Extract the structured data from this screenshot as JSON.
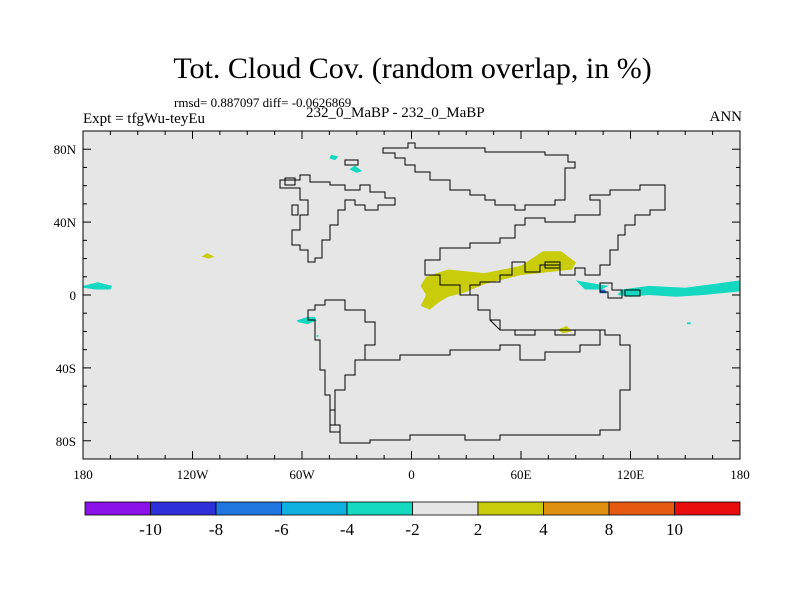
{
  "title": "Tot. Cloud Cov. (random overlap, in %)",
  "stats": "rmsd= 0.887097 diff= -0.0626869",
  "left_label": "Expt = tfgWu-teyEu",
  "center_label": "232_0_MaBP - 232_0_MaBP",
  "right_label": "ANN",
  "chart_data": {
    "type": "heatmap",
    "title": "Tot. Cloud Cov. (random overlap, in %)",
    "xlim": [
      -180,
      180
    ],
    "ylim": [
      -90,
      90
    ],
    "x_ticks": [
      {
        "value": -180,
        "label": "180"
      },
      {
        "value": -120,
        "label": "120W"
      },
      {
        "value": -60,
        "label": "60W"
      },
      {
        "value": 0,
        "label": "0"
      },
      {
        "value": 60,
        "label": "60E"
      },
      {
        "value": 120,
        "label": "120E"
      },
      {
        "value": 180,
        "label": "180"
      }
    ],
    "y_ticks": [
      {
        "value": 80,
        "label": "80N"
      },
      {
        "value": 40,
        "label": "40N"
      },
      {
        "value": 0,
        "label": "0"
      },
      {
        "value": -40,
        "label": "40S"
      },
      {
        "value": -80,
        "label": "80S"
      }
    ],
    "background_color": "#e6e6e6",
    "colorbar": {
      "colors": [
        "#8a12e8",
        "#2f2fd9",
        "#1f76e0",
        "#10b0de",
        "#14d8c0",
        "#e6e6e6",
        "#c8cc0a",
        "#e09010",
        "#e55a10",
        "#e80c0c"
      ],
      "labels": [
        "-10",
        "-8",
        "-6",
        "-4",
        "-2",
        "2",
        "4",
        "8",
        "10"
      ]
    },
    "anomaly_regions": [
      {
        "name": "teal-north-1",
        "color": "#14d8c0",
        "points": [
          [
            -45,
            75
          ],
          [
            -42,
            74
          ],
          [
            -40,
            76
          ],
          [
            -44,
            77
          ]
        ]
      },
      {
        "name": "teal-north-2",
        "color": "#14d8c0",
        "points": [
          [
            -34,
            69
          ],
          [
            -30,
            67
          ],
          [
            -27,
            68
          ],
          [
            -31,
            71
          ]
        ]
      },
      {
        "name": "yellow-pacific",
        "color": "#c8cc0a",
        "points": [
          [
            -115,
            21
          ],
          [
            -111,
            20
          ],
          [
            -108,
            21
          ],
          [
            -112,
            23
          ]
        ]
      },
      {
        "name": "teal-dateline",
        "color": "#14d8c0",
        "points": [
          [
            -180,
            5
          ],
          [
            -172,
            7
          ],
          [
            -164,
            5
          ],
          [
            -165,
            3
          ],
          [
            -173,
            3
          ],
          [
            -180,
            4
          ]
        ]
      },
      {
        "name": "teal-south-america",
        "color": "#14d8c0",
        "points": [
          [
            -63,
            -14
          ],
          [
            -57,
            -12
          ],
          [
            -53,
            -12
          ],
          [
            -52,
            -14
          ],
          [
            -57,
            -16
          ],
          [
            -62,
            -15
          ]
        ]
      },
      {
        "name": "teal-small-1",
        "color": "#14d8c0",
        "points": [
          [
            -52,
            -22
          ],
          [
            -51,
            -22
          ],
          [
            -51,
            -23
          ],
          [
            -52,
            -23
          ]
        ]
      },
      {
        "name": "yellow-africa-band",
        "color": "#c8cc0a",
        "points": [
          [
            8,
            10
          ],
          [
            20,
            14
          ],
          [
            40,
            12
          ],
          [
            60,
            16
          ],
          [
            72,
            24
          ],
          [
            82,
            24
          ],
          [
            90,
            18
          ],
          [
            88,
            14
          ],
          [
            70,
            12
          ],
          [
            60,
            11
          ],
          [
            40,
            6
          ],
          [
            28,
            1
          ],
          [
            20,
            -1
          ],
          [
            15,
            -4
          ],
          [
            10,
            -8
          ],
          [
            5,
            -6
          ],
          [
            8,
            0
          ],
          [
            5,
            5
          ]
        ]
      },
      {
        "name": "yellow-small-south",
        "color": "#c8cc0a",
        "points": [
          [
            80,
            -19
          ],
          [
            85,
            -17
          ],
          [
            88,
            -20
          ],
          [
            83,
            -21
          ]
        ]
      },
      {
        "name": "teal-indonesia",
        "color": "#14d8c0",
        "points": [
          [
            90,
            8
          ],
          [
            102,
            6
          ],
          [
            108,
            5
          ],
          [
            104,
            3
          ],
          [
            95,
            3
          ]
        ]
      },
      {
        "name": "blue-indonesia",
        "color": "#1f76e0",
        "points": [
          [
            103,
            3
          ],
          [
            106,
            3
          ],
          [
            107,
            1
          ],
          [
            103,
            1
          ]
        ]
      },
      {
        "name": "teal-pacific-band",
        "color": "#14d8c0",
        "points": [
          [
            115,
            3
          ],
          [
            130,
            5
          ],
          [
            150,
            4
          ],
          [
            165,
            6
          ],
          [
            180,
            8
          ],
          [
            180,
            2
          ],
          [
            160,
            0
          ],
          [
            145,
            -1
          ],
          [
            130,
            0
          ],
          [
            120,
            -1
          ],
          [
            113,
            0
          ]
        ]
      },
      {
        "name": "teal-small-east",
        "color": "#14d8c0",
        "points": [
          [
            151,
            -15
          ],
          [
            153,
            -15
          ],
          [
            153,
            -16
          ],
          [
            151,
            -16
          ]
        ]
      }
    ]
  }
}
